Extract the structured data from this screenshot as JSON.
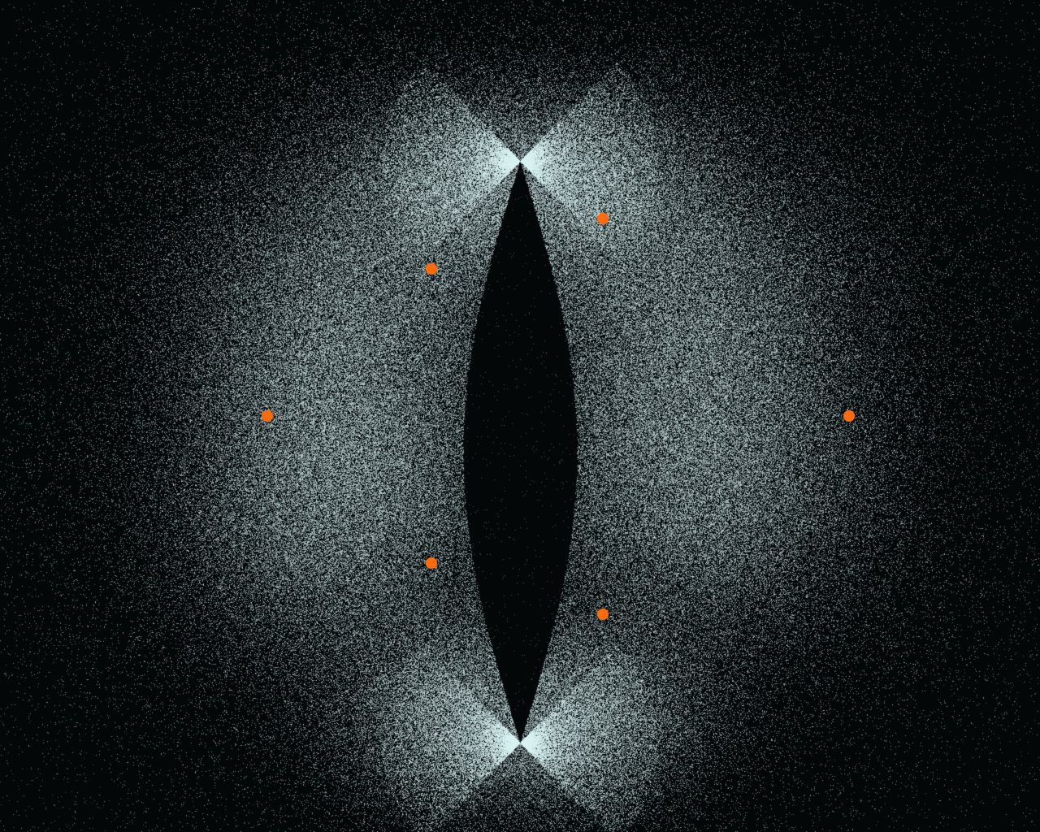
{
  "scene": {
    "background_color": "#030708",
    "particle_color": "#d8f2f2",
    "marker_color": "#ff6a0a",
    "marker_count": 6,
    "center_lobe_color": "#030708"
  }
}
